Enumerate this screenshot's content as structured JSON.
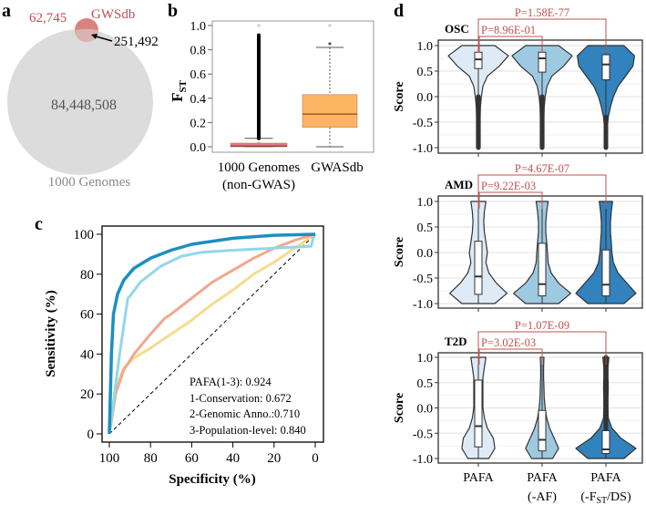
{
  "panel_labels": {
    "a": "a",
    "b": "b",
    "c": "c",
    "d": "d"
  },
  "chart_data": [
    {
      "panel": "a",
      "type": "venn",
      "sets": [
        {
          "name": "1000 Genomes",
          "only_count": "84,448,508",
          "color": "#dcdcdc"
        },
        {
          "name": "GWSdb",
          "only_count": "62,745",
          "color": "#d9837e"
        }
      ],
      "intersection": "251,492"
    },
    {
      "panel": "b",
      "type": "box",
      "ylabel": "F",
      "ylabel_sub": "ST",
      "ylim": [
        0,
        1
      ],
      "yticks": [
        "0.0",
        "0.2",
        "0.4",
        "0.6",
        "0.8",
        "1.0"
      ],
      "boxes": [
        {
          "label": "1000 Genomes",
          "label2": "(non-GWAS)",
          "color": "#e8739a",
          "whisker_low": 0,
          "q1": 0,
          "median": 0.005,
          "q3": 0.03,
          "whisker_high": 0.07,
          "outlier_range": [
            0.07,
            0.92
          ],
          "outliers": [
            1.0
          ]
        },
        {
          "label": "GWASdb",
          "label2": "",
          "color": "#fdb462",
          "whisker_low": 0,
          "q1": 0.16,
          "median": 0.27,
          "q3": 0.43,
          "whisker_high": 0.82,
          "outlier_range": null,
          "outliers": [
            0.85,
            1.0
          ]
        }
      ]
    },
    {
      "panel": "c",
      "type": "line",
      "xlabel": "Specificity (%)",
      "ylabel": "Sensitivity (%)",
      "xlim": [
        100,
        0
      ],
      "ylim": [
        0,
        100
      ],
      "xticks": [
        "100",
        "80",
        "60",
        "40",
        "20",
        "0"
      ],
      "yticks": [
        "0",
        "20",
        "40",
        "60",
        "80",
        "100"
      ],
      "legend_text": [
        "PAFA(1-3): 0.924",
        "1-Conservation: 0.672",
        "2-Genomic Anno.:0.710",
        "3-Population-level: 0.840"
      ],
      "series": [
        {
          "color": "#f6dc8e",
          "points": [
            [
              100,
              0
            ],
            [
              96,
              25
            ],
            [
              93,
              33
            ],
            [
              88,
              38
            ],
            [
              80,
              43
            ],
            [
              70,
              50
            ],
            [
              60,
              57
            ],
            [
              50,
              65
            ],
            [
              40,
              72
            ],
            [
              30,
              80
            ],
            [
              20,
              86
            ],
            [
              10,
              93
            ],
            [
              0,
              100
            ]
          ]
        },
        {
          "color": "#f1a88e",
          "points": [
            [
              100,
              0
            ],
            [
              97,
              20
            ],
            [
              93,
              32
            ],
            [
              88,
              40
            ],
            [
              80,
              50
            ],
            [
              73,
              58
            ],
            [
              70,
              60
            ],
            [
              60,
              68
            ],
            [
              50,
              76
            ],
            [
              40,
              82
            ],
            [
              30,
              88
            ],
            [
              20,
              93
            ],
            [
              10,
              97
            ],
            [
              0,
              100
            ]
          ]
        },
        {
          "color": "#92d7ea",
          "points": [
            [
              100,
              0
            ],
            [
              95,
              40
            ],
            [
              91,
              68
            ],
            [
              90,
              69
            ],
            [
              85,
              76
            ],
            [
              75,
              84
            ],
            [
              65,
              89
            ],
            [
              55,
              91
            ],
            [
              40,
              92
            ],
            [
              20,
              93
            ],
            [
              2,
              94
            ],
            [
              1,
              98
            ],
            [
              0,
              100
            ]
          ]
        },
        {
          "color": "#1b8fc1",
          "points": [
            [
              100,
              0
            ],
            [
              99,
              40
            ],
            [
              98,
              60
            ],
            [
              96,
              70
            ],
            [
              93,
              77
            ],
            [
              88,
              83
            ],
            [
              80,
              88
            ],
            [
              70,
              92
            ],
            [
              60,
              95
            ],
            [
              40,
              98
            ],
            [
              20,
              99.5
            ],
            [
              0,
              100
            ]
          ]
        }
      ],
      "reference_line": [
        [
          100,
          0
        ],
        [
          0,
          100
        ]
      ]
    },
    {
      "panel": "d",
      "type": "violin",
      "ylabel": "Score",
      "ylim": [
        -1,
        1
      ],
      "yticks": [
        "-1.0",
        "-0.5",
        "0.0",
        "0.5",
        "1.0"
      ],
      "categories": [
        {
          "line1": "PAFA",
          "line2": ""
        },
        {
          "line1": "PAFA",
          "line2": "(-AF)"
        },
        {
          "line1": "PAFA",
          "line2_pre": "(-F",
          "line2_sub": "ST",
          "line2_post": "/DS)"
        }
      ],
      "colors": [
        "#deebf7",
        "#9ecae1",
        "#3182bd"
      ],
      "density_levels": [
        -1,
        -0.8,
        -0.6,
        -0.4,
        -0.2,
        0,
        0.2,
        0.4,
        0.6,
        0.8,
        1
      ],
      "subplots": [
        {
          "title": "OSC",
          "p_short": "P=8.96E-01",
          "p_long": "P=1.58E-77",
          "violins": [
            {
              "density": [
                0.06,
                0.06,
                0.06,
                0.06,
                0.07,
                0.1,
                0.15,
                0.3,
                0.7,
                1.0,
                0.55
              ],
              "q1": 0.55,
              "median": 0.73,
              "q3": 0.87,
              "outlier_range": [
                -1,
                0.0
              ]
            },
            {
              "density": [
                0.06,
                0.06,
                0.06,
                0.06,
                0.07,
                0.1,
                0.16,
                0.32,
                0.72,
                1.0,
                0.55
              ],
              "q1": 0.48,
              "median": 0.75,
              "q3": 0.87,
              "outlier_range": [
                -1,
                0.0
              ]
            },
            {
              "density": [
                0.04,
                0.04,
                0.05,
                0.08,
                0.15,
                0.25,
                0.4,
                0.65,
                0.9,
                0.95,
                0.6
              ],
              "q1": 0.33,
              "median": 0.63,
              "q3": 0.82,
              "outlier_range": [
                -1,
                -0.4
              ]
            }
          ]
        },
        {
          "title": "AMD",
          "p_short": "P=9.22E-03",
          "p_long": "P=4.67E-07",
          "violins": [
            {
              "density": [
                0.55,
                0.95,
                0.6,
                0.35,
                0.25,
                0.3,
                0.25,
                0.2,
                0.18,
                0.2,
                0.25
              ],
              "q1": -0.82,
              "median": -0.47,
              "q3": 0.22,
              "outlier_range": null
            },
            {
              "density": [
                0.55,
                0.95,
                0.55,
                0.3,
                0.2,
                0.18,
                0.15,
                0.12,
                0.12,
                0.15,
                0.2
              ],
              "q1": -0.85,
              "median": -0.62,
              "q3": 0.18,
              "outlier_range": null
            },
            {
              "density": [
                0.6,
                1.0,
                0.7,
                0.4,
                0.25,
                0.2,
                0.18,
                0.15,
                0.15,
                0.18,
                0.22
              ],
              "q1": -0.85,
              "median": -0.63,
              "q3": 0.05,
              "outlier_range": null
            }
          ]
        },
        {
          "title": "T2D",
          "p_short": "P=3.02E-03",
          "p_long": "P=1.07E-09",
          "violins": [
            {
              "density": [
                0.35,
                0.55,
                0.5,
                0.3,
                0.2,
                0.15,
                0.15,
                0.15,
                0.15,
                0.2,
                0.25
              ],
              "q1": -0.77,
              "median": -0.36,
              "q3": 0.55,
              "outlier_range": null
            },
            {
              "density": [
                0.35,
                0.55,
                0.4,
                0.25,
                0.15,
                0.1,
                0.07,
                0.06,
                0.05,
                0.05,
                0.06
              ],
              "q1": -0.85,
              "median": -0.63,
              "q3": -0.05,
              "outlier_range": null
            },
            {
              "density": [
                0.6,
                1.0,
                0.5,
                0.2,
                0.08,
                0.07,
                0.07,
                0.08,
                0.07,
                0.07,
                0.1
              ],
              "q1": -0.9,
              "median": -0.82,
              "q3": -0.45,
              "outlier_range": [
                -0.45,
                1.0
              ]
            }
          ]
        }
      ],
      "bracket_color": "#c0504d"
    }
  ]
}
